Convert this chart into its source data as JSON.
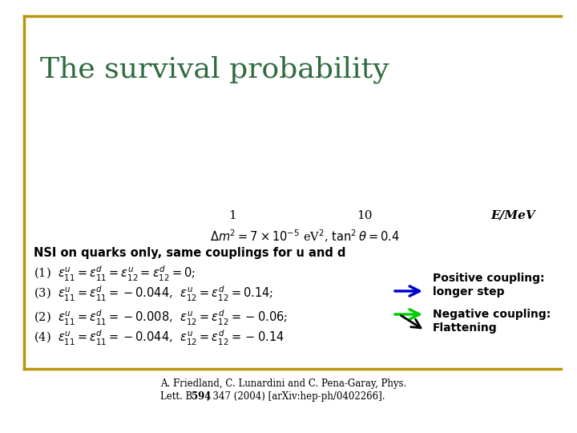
{
  "title": "The survival probability",
  "title_color": "#2E6B3E",
  "title_fontsize": 26,
  "bg_color": "#FFFFFF",
  "border_color": "#B8960C",
  "axis_label_x": "1",
  "axis_label_10": "10",
  "axis_label_emev": "E/MeV",
  "params_text": "$\\Delta m^2 = 7 \\times 10^{-5}$ eV$^2$, $\\tan^2\\theta = 0.4$",
  "nsi_text": "NSI on quarks only, same couplings for u and d",
  "eq1": "(1)  $\\epsilon^u_{11} = \\epsilon^d_{11} = \\epsilon^u_{12} = \\epsilon^d_{12} = 0$;",
  "eq3": "(3)  $\\epsilon^u_{11} = \\epsilon^d_{11} = -0.044$,  $\\epsilon^u_{12} = \\epsilon^d_{12} = 0.14$;",
  "eq2": "(2)  $\\epsilon^u_{11} = \\epsilon^d_{11} = -0.008$,  $\\epsilon^u_{12} = \\epsilon^d_{12} = -0.06$;",
  "eq4": "(4)  $\\epsilon^u_{11} = \\epsilon^d_{11} = -0.044$,  $\\epsilon^u_{12} = \\epsilon^d_{12} = -0.14$",
  "pos_label1": "Positive coupling:",
  "pos_label2": "longer step",
  "neg_label1": "Negative coupling:",
  "neg_label2": "Flattening",
  "arrow_blue": "#0000CC",
  "arrow_green": "#00CC00",
  "arrow_black": "#000000"
}
